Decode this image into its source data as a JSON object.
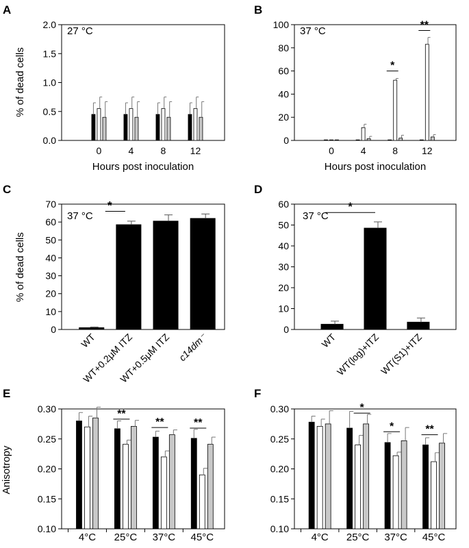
{
  "figure": {
    "panel_letters": [
      "A",
      "B",
      "C",
      "D",
      "E",
      "F"
    ],
    "bar_colors": {
      "black": "#000000",
      "white": "#ffffff",
      "gray": "#c8c8c8"
    }
  },
  "chart_data": [
    {
      "panel": "A",
      "type": "bar",
      "annotation": "27 °C",
      "ylabel": "% of dead cells",
      "xlabel": "Hours post inoculation",
      "ylim": [
        0,
        2.0
      ],
      "yticks": [
        "0.0",
        "0.5",
        "1.0",
        "1.5",
        "2.0"
      ],
      "categories": [
        "0",
        "4",
        "8",
        "12"
      ],
      "series": [
        {
          "color": "black",
          "values": [
            0.45,
            0.45,
            0.45,
            0.45
          ],
          "errors": [
            0.2,
            0.2,
            0.2,
            0.2
          ]
        },
        {
          "color": "white",
          "values": [
            0.55,
            0.55,
            0.55,
            0.55
          ],
          "errors": [
            0.2,
            0.2,
            0.2,
            0.2
          ]
        },
        {
          "color": "gray",
          "values": [
            0.4,
            0.4,
            0.4,
            0.4
          ],
          "errors": [
            0.27,
            0.27,
            0.27,
            0.27
          ]
        }
      ],
      "significance": []
    },
    {
      "panel": "B",
      "type": "bar",
      "annotation": "37 °C",
      "ylabel": "",
      "xlabel": "Hours post inoculation",
      "ylim": [
        0,
        100
      ],
      "yticks": [
        "0",
        "20",
        "40",
        "60",
        "80",
        "100"
      ],
      "categories": [
        "0",
        "4",
        "8",
        "12"
      ],
      "series": [
        {
          "color": "black",
          "values": [
            0.5,
            0.5,
            0.5,
            0.5
          ],
          "errors": [
            0,
            0,
            0,
            0
          ]
        },
        {
          "color": "white",
          "values": [
            0.5,
            11,
            52,
            83
          ],
          "errors": [
            0,
            3,
            1.5,
            6
          ]
        },
        {
          "color": "gray",
          "values": [
            0.5,
            1.5,
            2,
            3
          ],
          "errors": [
            0,
            2,
            2.5,
            2
          ]
        }
      ],
      "significance": [
        {
          "category": 2,
          "label": "*",
          "y": 60
        },
        {
          "category": 3,
          "label": "**",
          "y": 95
        }
      ]
    },
    {
      "panel": "C",
      "type": "bar",
      "annotation": "37 °C",
      "ylabel": "% of dead cells",
      "xlabel": "",
      "ylim": [
        0,
        70
      ],
      "yticks": [
        "0",
        "10",
        "20",
        "30",
        "40",
        "50",
        "60",
        "70"
      ],
      "categories": [
        "WT",
        "WT+0.2μM ITZ",
        "WT+0.5μM ITZ",
        "c14dm⁻"
      ],
      "values": [
        1,
        58.5,
        60.5,
        62
      ],
      "errors": [
        0.4,
        2,
        3.5,
        2.5
      ],
      "significance": [
        {
          "from": 0,
          "to": 1,
          "label": "*",
          "y": 66
        }
      ]
    },
    {
      "panel": "D",
      "type": "bar",
      "annotation": "37 °C",
      "ylabel": "",
      "xlabel": "",
      "ylim": [
        0,
        60
      ],
      "yticks": [
        "0",
        "10",
        "20",
        "30",
        "40",
        "50",
        "60"
      ],
      "categories": [
        "WT",
        "WT(log)+ITZ",
        "WT(S1)+ITZ"
      ],
      "values": [
        2.5,
        48.5,
        3.5
      ],
      "errors": [
        1.5,
        3,
        2
      ],
      "significance": [
        {
          "from": 0,
          "to": 1,
          "label": "*",
          "y": 56
        }
      ]
    },
    {
      "panel": "E",
      "type": "bar",
      "annotation": "",
      "ylabel": "Anisotropy",
      "xlabel": "",
      "ylim": [
        0.1,
        0.3
      ],
      "yticks": [
        "0.10",
        "0.15",
        "0.20",
        "0.25",
        "0.30"
      ],
      "categories": [
        "4°C",
        "25°C",
        "37°C",
        "45°C"
      ],
      "series": [
        {
          "color": "black",
          "values": [
            0.28,
            0.267,
            0.253,
            0.251
          ],
          "errors": [
            0.014,
            0.013,
            0.01,
            0.015
          ]
        },
        {
          "color": "white",
          "values": [
            0.27,
            0.241,
            0.22,
            0.19
          ],
          "errors": [
            0.018,
            0.007,
            0.01,
            0.011
          ]
        },
        {
          "color": "gray",
          "values": [
            0.285,
            0.271,
            0.257,
            0.241
          ],
          "errors": [
            0.018,
            0.01,
            0.008,
            0.012
          ]
        }
      ],
      "significance": [
        {
          "category": 1,
          "label": "**",
          "y": 0.283
        },
        {
          "category": 2,
          "label": "**",
          "y": 0.269
        },
        {
          "category": 3,
          "label": "**",
          "y": 0.268
        }
      ]
    },
    {
      "panel": "F",
      "type": "bar",
      "annotation": "",
      "ylabel": "",
      "xlabel": "",
      "ylim": [
        0.1,
        0.3
      ],
      "yticks": [
        "0.10",
        "0.15",
        "0.20",
        "0.25",
        "0.30"
      ],
      "categories": [
        "4°C",
        "25°C",
        "37°C",
        "45°C"
      ],
      "series": [
        {
          "color": "black",
          "values": [
            0.278,
            0.268,
            0.244,
            0.24
          ],
          "errors": [
            0.01,
            0.028,
            0.015,
            0.012
          ]
        },
        {
          "color": "white",
          "values": [
            0.271,
            0.24,
            0.222,
            0.212
          ],
          "errors": [
            0.012,
            0.016,
            0.006,
            0.015
          ]
        },
        {
          "color": "gray",
          "values": [
            0.275,
            0.275,
            0.247,
            0.243
          ],
          "errors": [
            0.022,
            0.016,
            0.022,
            0.016
          ]
        }
      ],
      "significance": [
        {
          "from": 1,
          "to": 2,
          "category": 1,
          "label": "*",
          "y": 0.293
        },
        {
          "category": 2,
          "label": "*",
          "y": 0.262
        },
        {
          "category": 3,
          "label": "**",
          "y": 0.257
        }
      ]
    }
  ]
}
